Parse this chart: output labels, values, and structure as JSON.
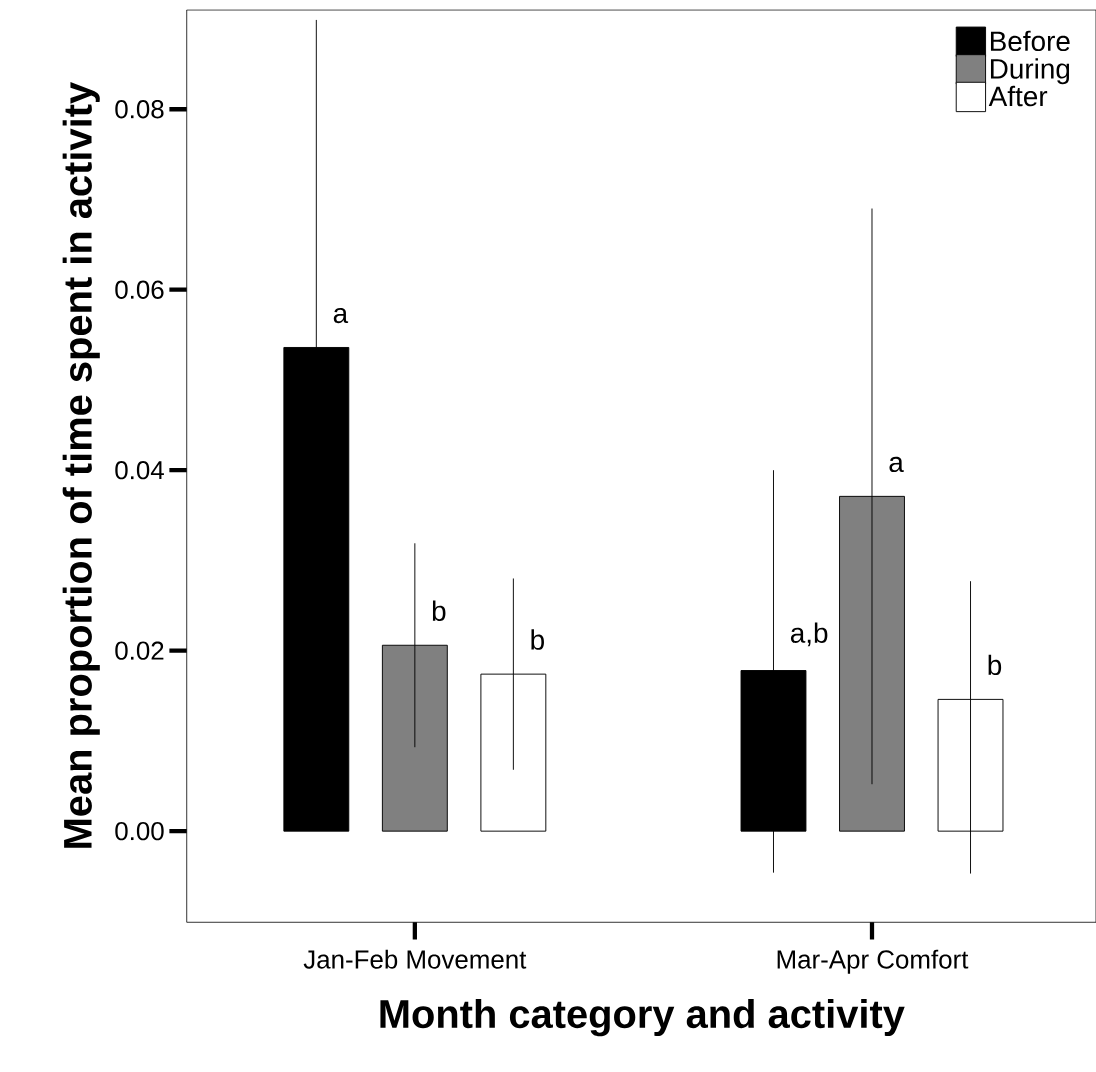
{
  "chart_data": {
    "type": "bar",
    "xlabel": "Month category and activity",
    "ylabel": "Mean proportion of time spent in activity",
    "categories": [
      "Jan-Feb Movement",
      "Mar-Apr Comfort"
    ],
    "series": [
      {
        "name": "Before",
        "color": "#000000",
        "values": [
          0.0536,
          0.0178
        ],
        "errors": [
          0.0363,
          [
            -0.0046,
            0.04
          ]
        ]
      },
      {
        "name": "During",
        "color": "#808080",
        "values": [
          0.0206,
          0.0371
        ],
        "errors": [
          0.0113,
          0.0319
        ]
      },
      {
        "name": "After",
        "color": "#ffffff",
        "values": [
          0.0174,
          0.0146
        ],
        "errors": [
          0.0106,
          [
            -0.0047,
            0.0277
          ]
        ]
      }
    ],
    "ylim": [
      -0.0101,
      0.091
    ],
    "yticks": [
      {
        "value": 0,
        "label": "0.00"
      },
      {
        "value": 0.02,
        "label": "0.02"
      },
      {
        "value": 0.04,
        "label": "0.04"
      },
      {
        "value": 0.06,
        "label": "0.06"
      },
      {
        "value": 0.08,
        "label": "0.08"
      }
    ],
    "legend": "top right",
    "annotations": [
      "a",
      "b",
      "b",
      "a,b",
      "a",
      "b"
    ]
  }
}
